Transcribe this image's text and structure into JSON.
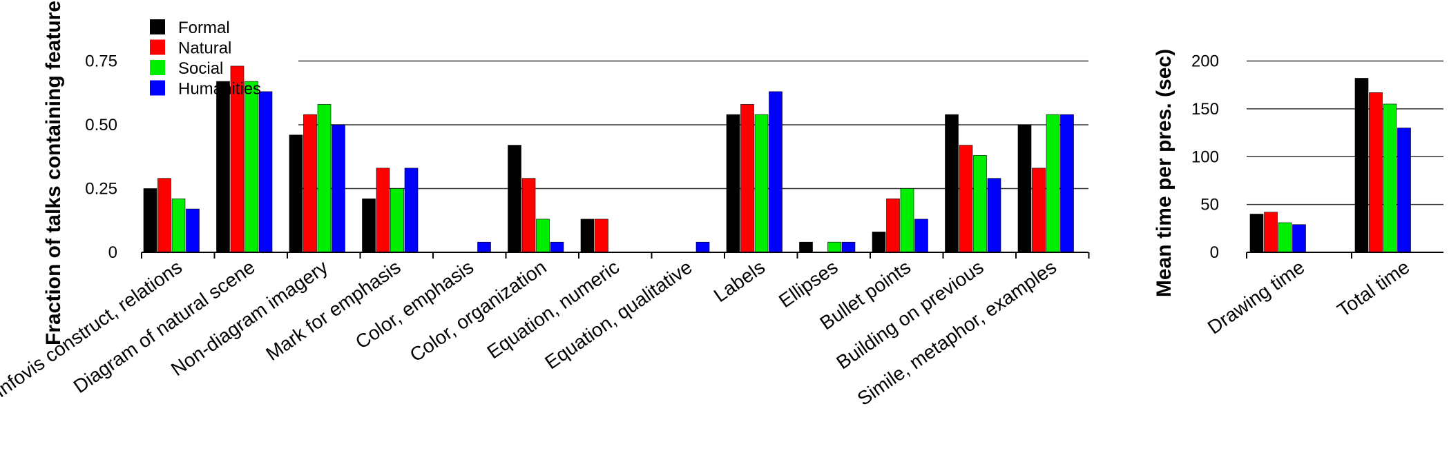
{
  "chart_data": [
    {
      "type": "bar",
      "ylabel": "Fraction of talks containing feature",
      "ylim": [
        0,
        0.8
      ],
      "yticks": [
        "0",
        "0.25",
        "0.50",
        "0.75"
      ],
      "ytick_values": [
        0,
        0.25,
        0.5,
        0.75
      ],
      "grid": true,
      "legend": "top-left",
      "categories": [
        "Infovis construct, relations",
        "Diagram of natural scene",
        "Non-diagram imagery",
        "Mark for emphasis",
        "Color, emphasis",
        "Color, organization",
        "Equation, numeric",
        "Equation, qualitative",
        "Labels",
        "Ellipses",
        "Bullet points",
        "Building on previous",
        "Simile, metaphor, examples"
      ],
      "series": [
        {
          "name": "Formal",
          "color": "#000000",
          "values": [
            0.25,
            0.67,
            0.46,
            0.21,
            0,
            0.42,
            0.13,
            0,
            0.54,
            0.04,
            0.08,
            0.54,
            0.5
          ]
        },
        {
          "name": "Natural",
          "color": "#ff0000",
          "values": [
            0.29,
            0.73,
            0.54,
            0.33,
            0,
            0.29,
            0.13,
            0,
            0.58,
            0,
            0.21,
            0.42,
            0.33
          ]
        },
        {
          "name": "Social",
          "color": "#00ee00",
          "values": [
            0.21,
            0.67,
            0.58,
            0.25,
            0,
            0.13,
            0,
            0,
            0.54,
            0.04,
            0.25,
            0.38,
            0.54
          ]
        },
        {
          "name": "Humanities",
          "color": "#0000ff",
          "values": [
            0.17,
            0.63,
            0.5,
            0.33,
            0.04,
            0.04,
            0,
            0.04,
            0.63,
            0.04,
            0.13,
            0.29,
            0.54
          ]
        }
      ]
    },
    {
      "type": "bar",
      "ylabel": "Mean time per pres. (sec)",
      "ylim": [
        0,
        200
      ],
      "yticks": [
        "0",
        "50",
        "100",
        "150",
        "200"
      ],
      "ytick_values": [
        0,
        50,
        100,
        150,
        200
      ],
      "grid": true,
      "categories": [
        "Drawing time",
        "Total time"
      ],
      "series": [
        {
          "name": "Formal",
          "color": "#000000",
          "values": [
            40,
            182
          ]
        },
        {
          "name": "Natural",
          "color": "#ff0000",
          "values": [
            42,
            167
          ]
        },
        {
          "name": "Social",
          "color": "#00ee00",
          "values": [
            31,
            155
          ]
        },
        {
          "name": "Humanities",
          "color": "#0000ff",
          "values": [
            29,
            130
          ]
        }
      ]
    }
  ]
}
